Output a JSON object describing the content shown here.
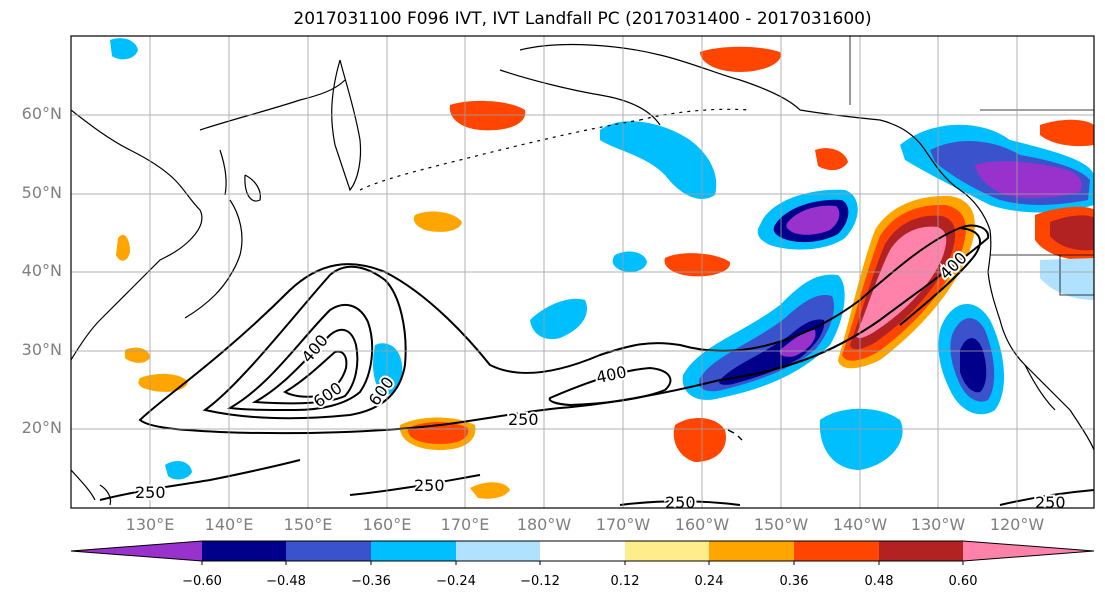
{
  "title": "2017031100 F096 IVT, IVT Landfall PC (2017031400 - 2017031600)",
  "lat_labels": [
    "60°N",
    "50°N",
    "40°N",
    "30°N",
    "20°N"
  ],
  "lon_labels": [
    "130°E",
    "140°E",
    "150°E",
    "160°E",
    "170°E",
    "180°W",
    "170°W",
    "160°W",
    "150°W",
    "140°W",
    "130°W",
    "120°W"
  ],
  "contour_labels": [
    "400",
    "600",
    "600",
    "400",
    "400",
    "250",
    "250",
    "250",
    "250",
    "250"
  ],
  "colorbar": {
    "colors": [
      "#9932cc",
      "#00008b",
      "#3a52cc",
      "#00bfff",
      "#b0e2ff",
      "#ffffff",
      "#ffec8b",
      "#ffa500",
      "#ff4500",
      "#b22222",
      "#ff82ab"
    ],
    "tick_labels": [
      "−0.60",
      "−0.48",
      "−0.36",
      "−0.24",
      "−0.12",
      "0.12",
      "0.24",
      "0.36",
      "0.48",
      "0.60"
    ]
  },
  "colors": {
    "grid": "#a0a0a0",
    "coast": "#000000",
    "axis_text": "#7f7f7f"
  }
}
